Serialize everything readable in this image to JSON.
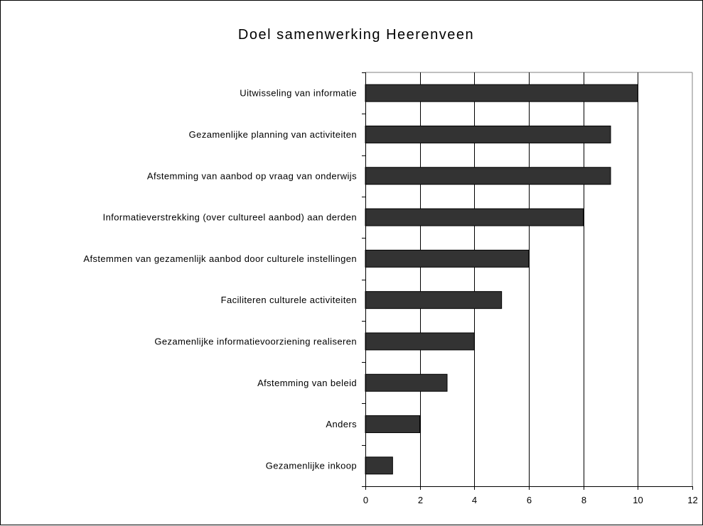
{
  "chart_data": {
    "type": "bar",
    "orientation": "horizontal",
    "title": "Doel samenwerking Heerenveen",
    "xlabel": "",
    "ylabel": "",
    "categories": [
      "Uitwisseling van informatie",
      "Gezamenlijke planning van activiteiten",
      "Afstemming van aanbod op vraag van onderwijs",
      "Informatieverstrekking (over cultureel aanbod) aan derden",
      "Afstemmen van gezamenlijk aanbod door culturele instellingen",
      "Faciliteren culturele activiteiten",
      "Gezamenlijke informatievoorziening realiseren",
      "Afstemming van beleid",
      "Anders",
      "Gezamenlijke inkoop"
    ],
    "values": [
      10,
      9,
      9,
      8,
      6,
      5,
      4,
      3,
      2,
      1
    ],
    "xlim": [
      0,
      12
    ],
    "xticks": [
      "0",
      "2",
      "4",
      "6",
      "8",
      "10",
      "12"
    ],
    "grid": "vertical",
    "legend": "none",
    "bar_color": "#333333",
    "plot_background": "#ffffff",
    "gridline_color": "#000000"
  }
}
